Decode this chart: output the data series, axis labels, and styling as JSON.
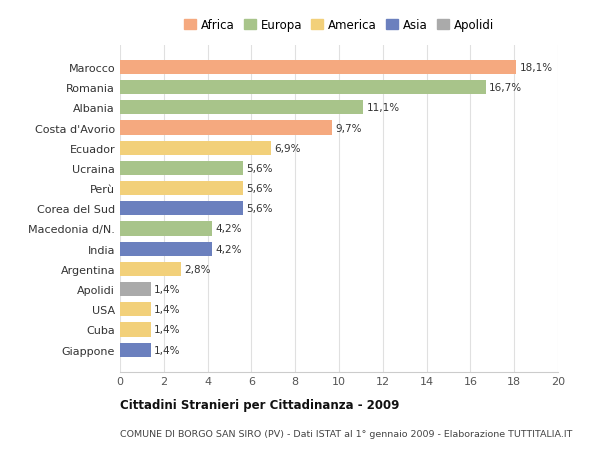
{
  "categories": [
    "Marocco",
    "Romania",
    "Albania",
    "Costa d'Avorio",
    "Ecuador",
    "Ucraina",
    "Perù",
    "Corea del Sud",
    "Macedonia d/N.",
    "India",
    "Argentina",
    "Apolidi",
    "USA",
    "Cuba",
    "Giappone"
  ],
  "values": [
    18.1,
    16.7,
    11.1,
    9.7,
    6.9,
    5.6,
    5.6,
    5.6,
    4.2,
    4.2,
    2.8,
    1.4,
    1.4,
    1.4,
    1.4
  ],
  "labels": [
    "18,1%",
    "16,7%",
    "11,1%",
    "9,7%",
    "6,9%",
    "5,6%",
    "5,6%",
    "5,6%",
    "4,2%",
    "4,2%",
    "2,8%",
    "1,4%",
    "1,4%",
    "1,4%",
    "1,4%"
  ],
  "colors": [
    "#F5A97F",
    "#A8C48A",
    "#A8C48A",
    "#F5A97F",
    "#F2D07A",
    "#A8C48A",
    "#F2D07A",
    "#6B80BE",
    "#A8C48A",
    "#6B80BE",
    "#F2D07A",
    "#AAAAAA",
    "#F2D07A",
    "#F2D07A",
    "#6B80BE"
  ],
  "legend_entries": [
    {
      "label": "Africa",
      "color": "#F5A97F"
    },
    {
      "label": "Europa",
      "color": "#A8C48A"
    },
    {
      "label": "America",
      "color": "#F2D07A"
    },
    {
      "label": "Asia",
      "color": "#6B80BE"
    },
    {
      "label": "Apolidi",
      "color": "#AAAAAA"
    }
  ],
  "xlim": [
    0,
    20
  ],
  "xticks": [
    0,
    2,
    4,
    6,
    8,
    10,
    12,
    14,
    16,
    18,
    20
  ],
  "title1": "Cittadini Stranieri per Cittadinanza - 2009",
  "title2": "COMUNE DI BORGO SAN SIRO (PV) - Dati ISTAT al 1° gennaio 2009 - Elaborazione TUTTITALIA.IT",
  "background_color": "#FFFFFF",
  "grid_color": "#E0E0E0",
  "bar_height": 0.7
}
